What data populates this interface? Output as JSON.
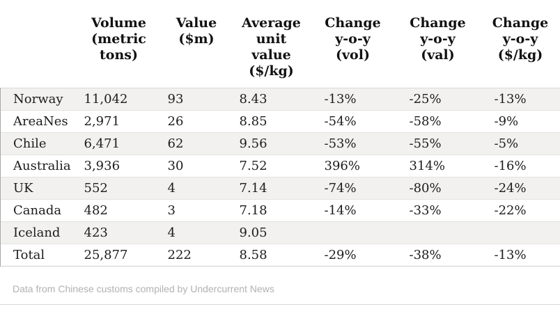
{
  "table": {
    "columns": [
      "",
      "Volume\n(metric\ntons)",
      "Value\n($m)",
      "Average\nunit\nvalue\n($/kg)",
      "Change\ny-o-y\n(vol)",
      "Change\ny-o-y\n(val)",
      "Change\ny-o-y\n($/kg)"
    ],
    "rows": [
      {
        "label": "Norway",
        "values": [
          "11,042",
          "93",
          "8.43",
          "-13%",
          "-25%",
          "-13%"
        ]
      },
      {
        "label": "AreaNes",
        "values": [
          "2,971",
          "26",
          "8.85",
          "-54%",
          "-58%",
          "-9%"
        ]
      },
      {
        "label": "Chile",
        "values": [
          "6,471",
          "62",
          "9.56",
          "-53%",
          "-55%",
          "-5%"
        ]
      },
      {
        "label": "Australia",
        "values": [
          "3,936",
          "30",
          "7.52",
          "396%",
          "314%",
          "-16%"
        ]
      },
      {
        "label": "UK",
        "values": [
          "552",
          "4",
          "7.14",
          "-74%",
          "-80%",
          "-24%"
        ]
      },
      {
        "label": "Canada",
        "values": [
          "482",
          "3",
          "7.18",
          "-14%",
          "-33%",
          "-22%"
        ]
      },
      {
        "label": "Iceland",
        "values": [
          "423",
          "4",
          "9.05",
          "",
          "",
          ""
        ]
      },
      {
        "label": "Total",
        "values": [
          "25,877",
          "222",
          "8.58",
          "-29%",
          "-38%",
          "-13%"
        ]
      }
    ]
  },
  "footer": {
    "source_text": "Data from Chinese customs compiled by Undercurrent News"
  },
  "colors": {
    "stripe": "#f2f1ef",
    "row_border": "#e2e2e0",
    "side_border": "#a8a8a6",
    "text": "#1c1c1c",
    "footer_text": "#b3b1b1",
    "bottom_rule": "#d8d8d6"
  },
  "chart_data": {
    "type": "table",
    "title": "",
    "categories": [
      "Norway",
      "AreaNes",
      "Chile",
      "Australia",
      "UK",
      "Canada",
      "Iceland",
      "Total"
    ],
    "series": [
      {
        "name": "Volume (metric tons)",
        "values": [
          11042,
          2971,
          6471,
          3936,
          552,
          482,
          423,
          25877
        ]
      },
      {
        "name": "Value ($m)",
        "values": [
          93,
          26,
          62,
          30,
          4,
          3,
          4,
          222
        ]
      },
      {
        "name": "Average unit value ($/kg)",
        "values": [
          8.43,
          8.85,
          9.56,
          7.52,
          7.14,
          7.18,
          9.05,
          8.58
        ]
      },
      {
        "name": "Change y-o-y (vol) %",
        "values": [
          -13,
          -54,
          -53,
          396,
          -74,
          -14,
          null,
          -29
        ]
      },
      {
        "name": "Change y-o-y (val) %",
        "values": [
          -25,
          -58,
          -55,
          314,
          -80,
          -33,
          null,
          -38
        ]
      },
      {
        "name": "Change y-o-y ($/kg) %",
        "values": [
          -13,
          -9,
          -5,
          -16,
          -24,
          -22,
          null,
          -13
        ]
      }
    ],
    "footnote": "Data from Chinese customs compiled by Undercurrent News",
    "layout_hints": {
      "zebra_striping": true,
      "header_align": "center",
      "body_align": "left"
    }
  }
}
